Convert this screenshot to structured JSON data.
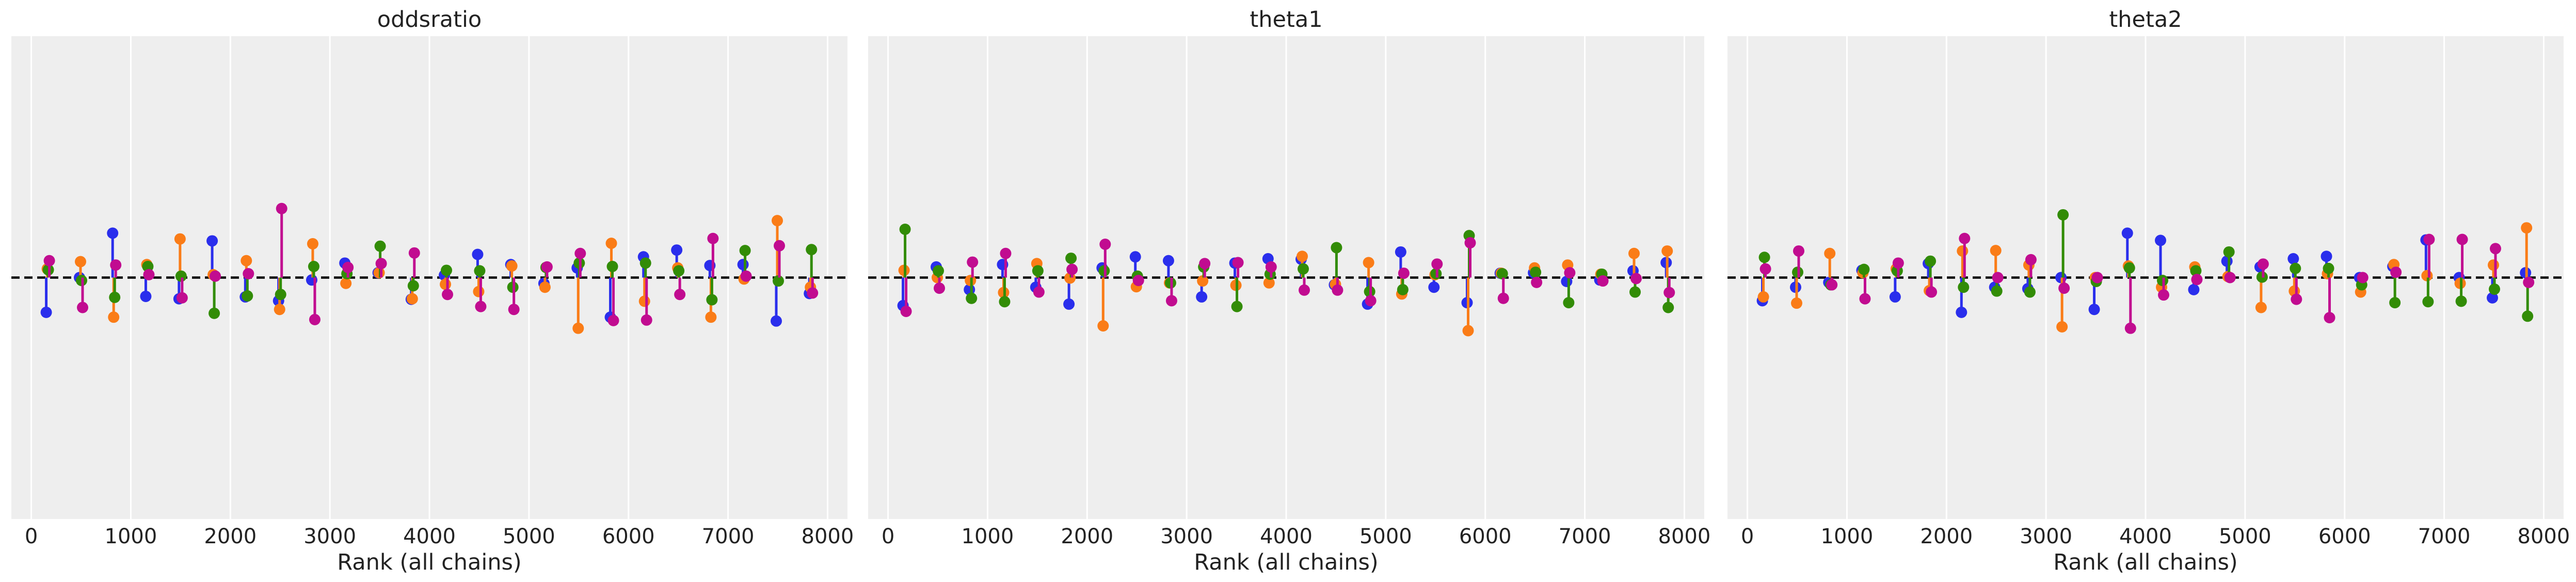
{
  "colors": {
    "background": "#eeeeee",
    "grid": "#ffffff",
    "reference": "#000000",
    "chains": [
      "#2a2eec",
      "#fa7c17",
      "#328c06",
      "#c10c90"
    ]
  },
  "chart_data": [
    {
      "type": "scatter",
      "title": "oddsratio",
      "xlabel": "Rank (all chains)",
      "ylabel": "",
      "xlim": [
        -200,
        8200
      ],
      "ylim": [
        -5,
        5
      ],
      "xticks": [
        0,
        1000,
        2000,
        3000,
        4000,
        5000,
        6000,
        7000,
        8000
      ],
      "xtick_labels": [
        "0",
        "1000",
        "2000",
        "3000",
        "4000",
        "5000",
        "6000",
        "7000",
        "8000"
      ],
      "grid": true,
      "reference_line": 0,
      "x": [
        166,
        500,
        833,
        1166,
        1500,
        1833,
        2166,
        2500,
        2833,
        3166,
        3500,
        3833,
        4166,
        4500,
        4833,
        5166,
        5500,
        5833,
        6166,
        6500,
        6833,
        7166,
        7500,
        7833
      ],
      "series": [
        {
          "values": [
            -0.72,
            0,
            0.92,
            -0.39,
            -0.44,
            0.76,
            -0.4,
            -0.48,
            -0.05,
            0.3,
            0.1,
            -0.45,
            0.05,
            0.48,
            0.27,
            -0.12,
            0.2,
            -0.82,
            0.43,
            0.57,
            0.25,
            0.27,
            -0.9,
            -0.33
          ]
        },
        {
          "values": [
            0.18,
            0.33,
            -0.82,
            0.27,
            0.8,
            0.06,
            0.35,
            -0.66,
            0.7,
            -0.12,
            0.1,
            -0.44,
            -0.14,
            -0.29,
            0.24,
            -0.2,
            -1.05,
            0.71,
            -0.49,
            0.2,
            -0.82,
            -0.03,
            1.18,
            -0.2
          ]
        },
        {
          "values": [
            0.16,
            -0.06,
            -0.41,
            0.23,
            0.03,
            -0.74,
            -0.38,
            -0.35,
            0.23,
            0.08,
            0.65,
            -0.17,
            0.15,
            0.14,
            -0.2,
            0.21,
            0.3,
            0.23,
            0.3,
            0.14,
            -0.46,
            0.56,
            -0.07,
            0.58
          ]
        },
        {
          "values": [
            0.35,
            -0.62,
            0.26,
            0.06,
            -0.42,
            0.03,
            0.08,
            1.43,
            -0.87,
            0.21,
            0.29,
            0.51,
            -0.35,
            -0.6,
            -0.66,
            0.22,
            0.5,
            -0.89,
            -0.88,
            -0.35,
            0.81,
            0.03,
            0.66,
            -0.32
          ]
        }
      ]
    },
    {
      "type": "scatter",
      "title": "theta1",
      "xlabel": "Rank (all chains)",
      "ylabel": "",
      "xlim": [
        -200,
        8200
      ],
      "ylim": [
        -5,
        5
      ],
      "xticks": [
        0,
        1000,
        2000,
        3000,
        4000,
        5000,
        6000,
        7000,
        8000
      ],
      "xtick_labels": [
        "0",
        "1000",
        "2000",
        "3000",
        "4000",
        "5000",
        "6000",
        "7000",
        "8000"
      ],
      "grid": true,
      "reference_line": 0,
      "x": [
        166,
        500,
        833,
        1166,
        1500,
        1833,
        2166,
        2500,
        2833,
        3166,
        3500,
        3833,
        4166,
        4500,
        4833,
        5166,
        5500,
        5833,
        6166,
        6500,
        6833,
        7166,
        7500,
        7833
      ],
      "series": [
        {
          "values": [
            -0.58,
            0.22,
            -0.25,
            0.27,
            -0.2,
            -0.55,
            0.2,
            0.43,
            0.35,
            -0.4,
            0.3,
            0.39,
            0.38,
            -0.15,
            -0.55,
            0.53,
            -0.2,
            -0.52,
            0.09,
            0.1,
            -0.08,
            -0.05,
            0.14,
            0.31
          ]
        },
        {
          "values": [
            0.15,
            0,
            -0.06,
            -0.31,
            0.29,
            -0.01,
            -1.0,
            -0.19,
            -0.11,
            -0.07,
            -0.16,
            -0.11,
            0.44,
            -0.14,
            0.31,
            -0.34,
            0.06,
            -1.1,
            0.09,
            0.2,
            0.26,
            0.07,
            0.5,
            0.55
          ]
        },
        {
          "values": [
            1.0,
            0.14,
            -0.43,
            -0.5,
            0.14,
            0.4,
            0.14,
            0.03,
            -0.11,
            0.22,
            -0.6,
            0.07,
            0.18,
            0.62,
            -0.29,
            -0.25,
            0.08,
            0.87,
            0.08,
            0.11,
            -0.52,
            0.07,
            -0.3,
            -0.62
          ]
        },
        {
          "values": [
            -0.7,
            -0.22,
            0.32,
            0.5,
            -0.3,
            0.17,
            0.69,
            -0.06,
            -0.48,
            0.29,
            0.31,
            0.22,
            -0.26,
            -0.26,
            -0.48,
            0.09,
            0.28,
            0.72,
            -0.43,
            -0.1,
            0.1,
            -0.07,
            -0.02,
            -0.31
          ]
        }
      ]
    },
    {
      "type": "scatter",
      "title": "theta2",
      "xlabel": "Rank (all chains)",
      "ylabel": "",
      "xlim": [
        -200,
        8200
      ],
      "ylim": [
        -5,
        5
      ],
      "xticks": [
        0,
        1000,
        2000,
        3000,
        4000,
        5000,
        6000,
        7000,
        8000
      ],
      "xtick_labels": [
        "0",
        "1000",
        "2000",
        "3000",
        "4000",
        "5000",
        "6000",
        "7000",
        "8000"
      ],
      "grid": true,
      "reference_line": 0,
      "x": [
        166,
        500,
        833,
        1166,
        1500,
        1833,
        2166,
        2500,
        2833,
        3166,
        3500,
        3833,
        4166,
        4500,
        4833,
        5166,
        5500,
        5833,
        6166,
        6500,
        6833,
        7166,
        7500,
        7833
      ],
      "series": [
        {
          "values": [
            -0.48,
            -0.2,
            -0.1,
            0.15,
            -0.4,
            0.29,
            -0.72,
            -0.2,
            -0.23,
            0.0,
            -0.66,
            0.92,
            0.77,
            -0.25,
            0.34,
            0.22,
            0.39,
            0.44,
            0.0,
            0.23,
            0.78,
            0.0,
            -0.42,
            0.1
          ]
        },
        {
          "values": [
            -0.4,
            -0.53,
            0.5,
            0.1,
            0.18,
            -0.27,
            0.55,
            0.56,
            0.26,
            -1.02,
            0.0,
            0.24,
            -0.2,
            0.22,
            0.02,
            -0.62,
            -0.28,
            0.08,
            -0.3,
            0.27,
            0.04,
            -0.12,
            0.26,
            1.03
          ]
        },
        {
          "values": [
            0.42,
            0.11,
            -0.15,
            0.17,
            0.14,
            0.34,
            -0.2,
            -0.28,
            -0.3,
            1.3,
            -0.08,
            0.2,
            -0.06,
            0.14,
            0.53,
            0.01,
            0.19,
            0.19,
            -0.15,
            -0.52,
            -0.5,
            -0.49,
            -0.24,
            -0.8
          ]
        },
        {
          "values": [
            0.18,
            0.55,
            -0.15,
            -0.44,
            0.3,
            -0.3,
            0.81,
            0.0,
            0.37,
            -0.22,
            0.0,
            -1.05,
            -0.36,
            -0.04,
            0.0,
            0.28,
            -0.45,
            -0.83,
            0.0,
            0.11,
            0.79,
            0.79,
            0.6,
            -0.1
          ]
        }
      ]
    }
  ]
}
